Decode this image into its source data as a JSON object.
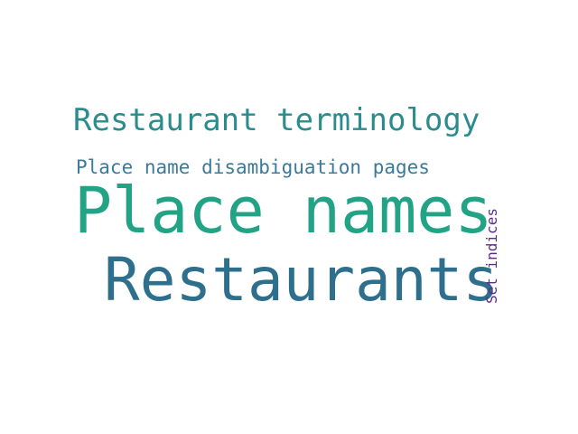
{
  "words": [
    {
      "text": "Restaurant terminology",
      "color": "#2a8c8c"
    },
    {
      "text": "Place name disambiguation pages",
      "color": "#3c7a9a"
    },
    {
      "text": "Place names",
      "color": "#22a386"
    },
    {
      "text": "Restaurants",
      "color": "#2e6f8e"
    },
    {
      "text": "Set indices",
      "color": "#5b2d86"
    }
  ]
}
